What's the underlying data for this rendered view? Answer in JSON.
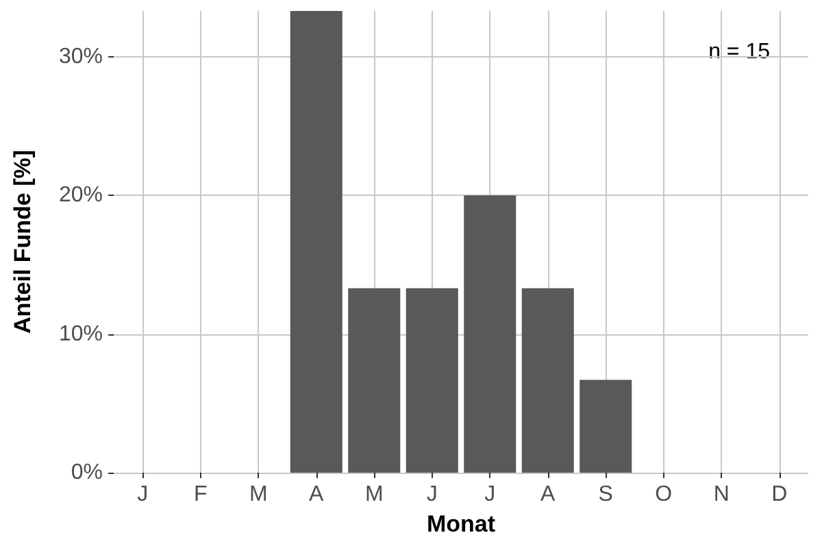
{
  "chart_data": {
    "type": "bar",
    "xlabel": "Monat",
    "ylabel": "Anteil Funde [%]",
    "categories": [
      "J",
      "F",
      "M",
      "A",
      "M",
      "J",
      "J",
      "A",
      "S",
      "O",
      "N",
      "D"
    ],
    "values": [
      0,
      0,
      0,
      33.3,
      13.3,
      13.3,
      20,
      13.3,
      6.7,
      0,
      0,
      0
    ],
    "color": "#595959",
    "ylim": [
      0,
      33.3
    ],
    "yticks": [
      {
        "value": 0,
        "label": "0%"
      },
      {
        "value": 10,
        "label": "10%"
      },
      {
        "value": 20,
        "label": "20%"
      },
      {
        "value": 30,
        "label": "30%"
      }
    ],
    "grid": true,
    "annotations": [
      "n = 15"
    ]
  }
}
